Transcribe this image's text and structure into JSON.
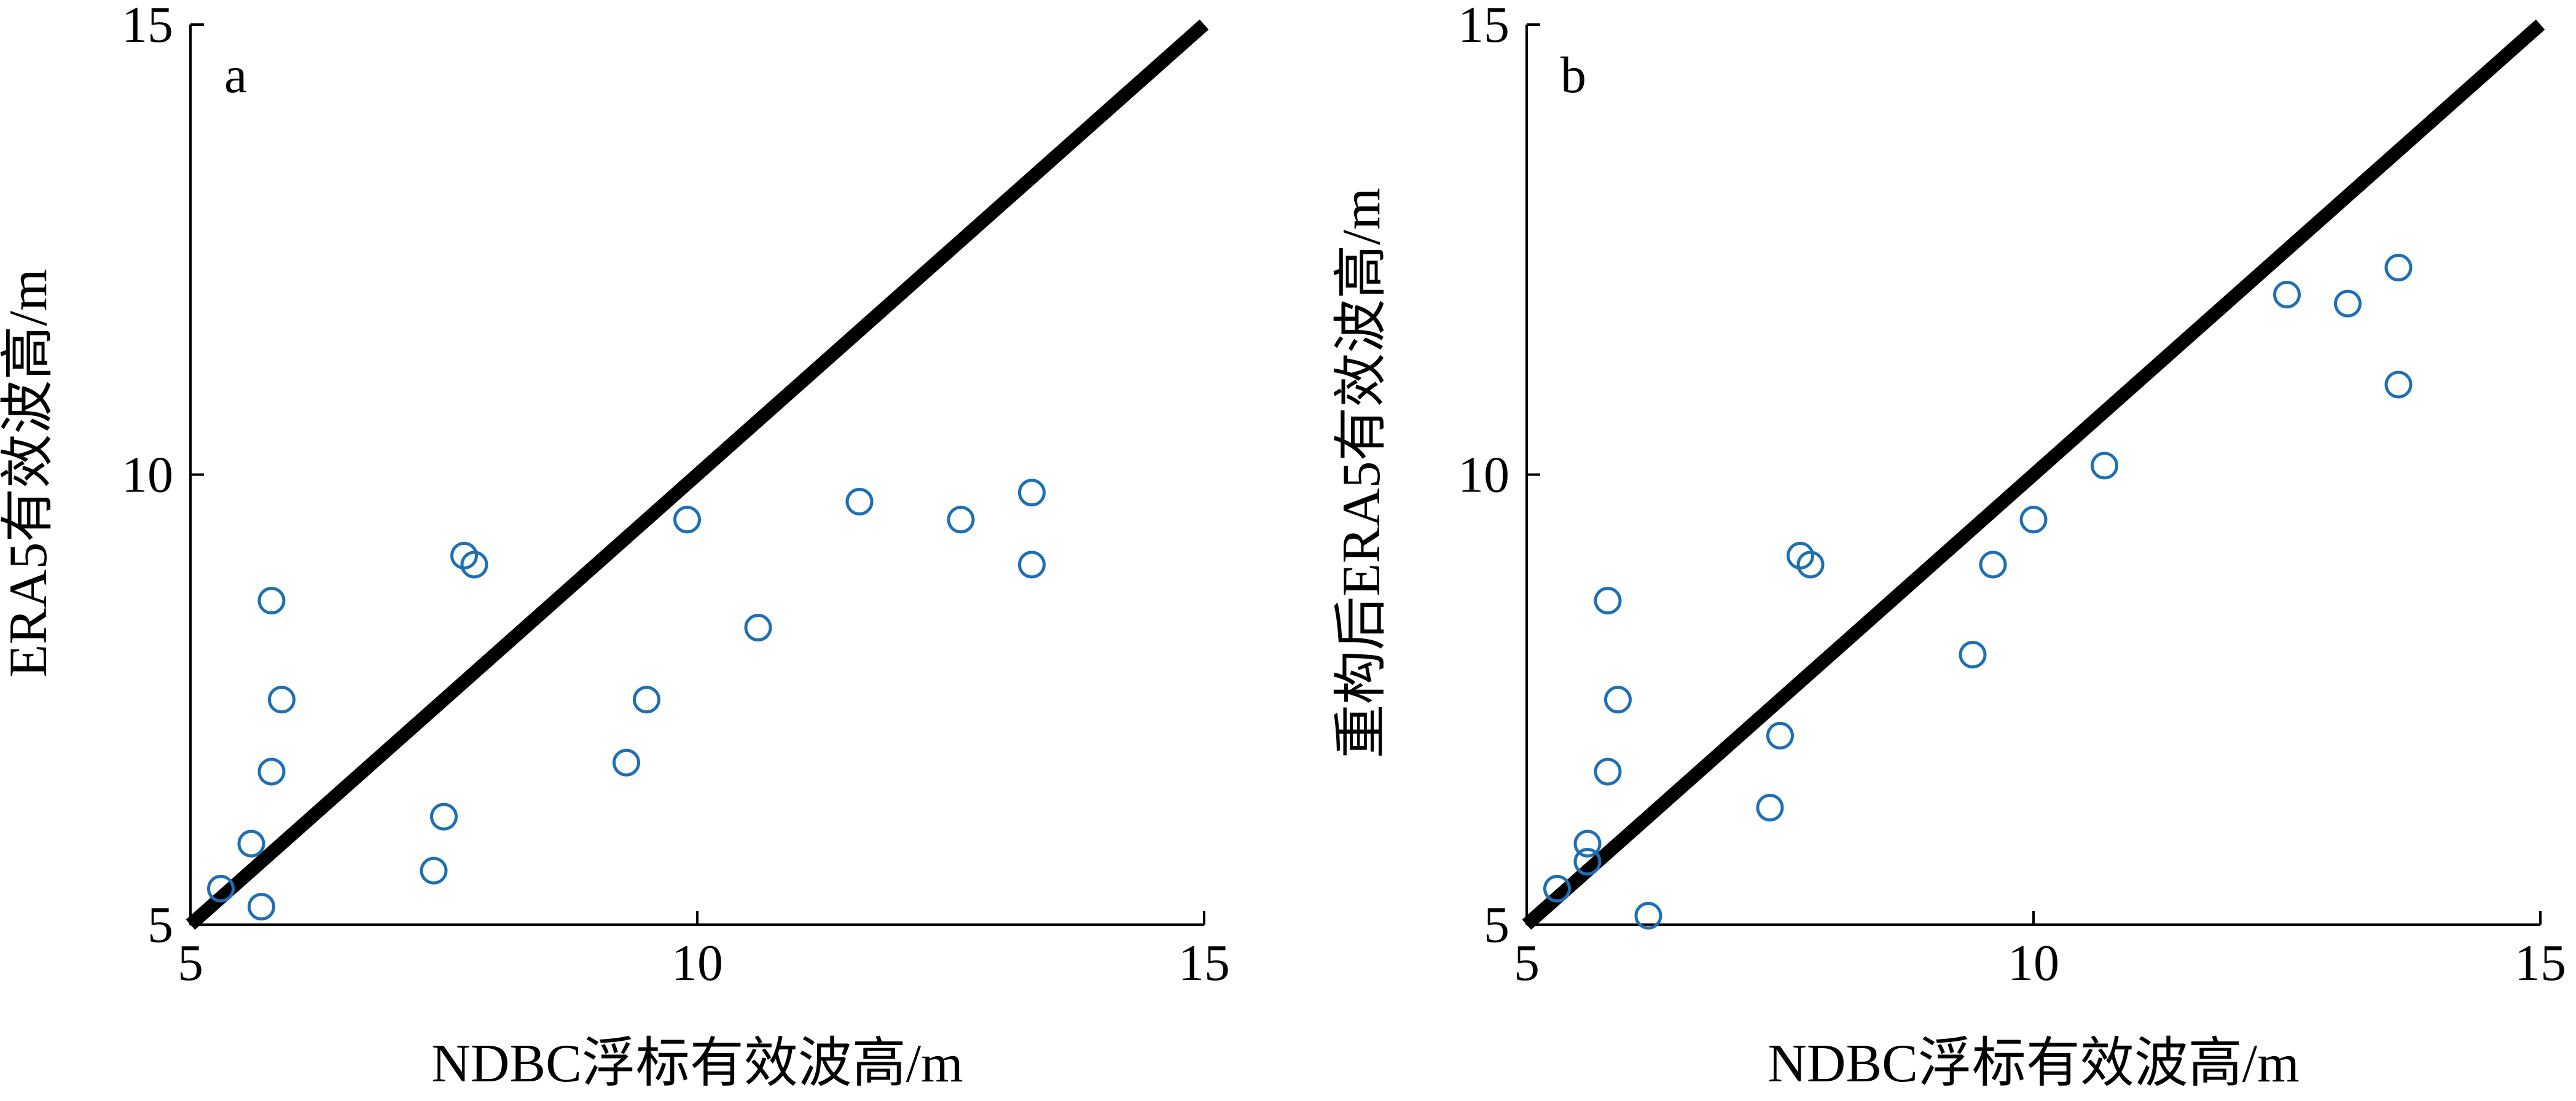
{
  "chart_data": [
    {
      "type": "scatter",
      "panel_label": "a",
      "xlabel": "NDBC浮标有效波高/m",
      "ylabel": "ERA5有效波高/m",
      "xlim": [
        5,
        15
      ],
      "ylim": [
        5,
        15
      ],
      "xticks": [
        5,
        10,
        15
      ],
      "yticks": [
        5,
        10,
        15
      ],
      "reference_line": [
        [
          5,
          5
        ],
        [
          15,
          15
        ]
      ],
      "marker_color": "#1f6fb4",
      "line_color": "#000000",
      "points": [
        [
          5.3,
          5.4
        ],
        [
          5.6,
          5.9
        ],
        [
          5.7,
          5.2
        ],
        [
          5.8,
          6.7
        ],
        [
          5.8,
          8.6
        ],
        [
          5.9,
          7.5
        ],
        [
          7.4,
          5.6
        ],
        [
          7.5,
          6.2
        ],
        [
          7.7,
          9.1
        ],
        [
          7.8,
          9.0
        ],
        [
          9.3,
          6.8
        ],
        [
          9.5,
          7.5
        ],
        [
          9.9,
          9.5
        ],
        [
          10.6,
          8.3
        ],
        [
          11.6,
          9.7
        ],
        [
          12.6,
          9.5
        ],
        [
          13.3,
          9.8
        ],
        [
          13.3,
          9.0
        ]
      ]
    },
    {
      "type": "scatter",
      "panel_label": "b",
      "xlabel": "NDBC浮标有效波高/m",
      "ylabel": "重构后ERA5有效波高/m",
      "xlim": [
        5,
        15
      ],
      "ylim": [
        5,
        15
      ],
      "xticks": [
        5,
        10,
        15
      ],
      "yticks": [
        5,
        10,
        15
      ],
      "reference_line": [
        [
          5,
          5
        ],
        [
          15,
          15
        ]
      ],
      "marker_color": "#1f6fb4",
      "line_color": "#000000",
      "points": [
        [
          5.3,
          5.4
        ],
        [
          5.6,
          5.9
        ],
        [
          5.6,
          5.7
        ],
        [
          5.8,
          6.7
        ],
        [
          5.8,
          8.6
        ],
        [
          5.9,
          7.5
        ],
        [
          6.2,
          5.1
        ],
        [
          7.4,
          6.3
        ],
        [
          7.5,
          7.1
        ],
        [
          7.7,
          9.1
        ],
        [
          7.8,
          9.0
        ],
        [
          9.4,
          8.0
        ],
        [
          9.6,
          9.0
        ],
        [
          10.0,
          9.5
        ],
        [
          10.7,
          10.1
        ],
        [
          12.5,
          12.0
        ],
        [
          13.1,
          11.9
        ],
        [
          13.6,
          12.3
        ],
        [
          13.6,
          11.0
        ]
      ]
    }
  ]
}
